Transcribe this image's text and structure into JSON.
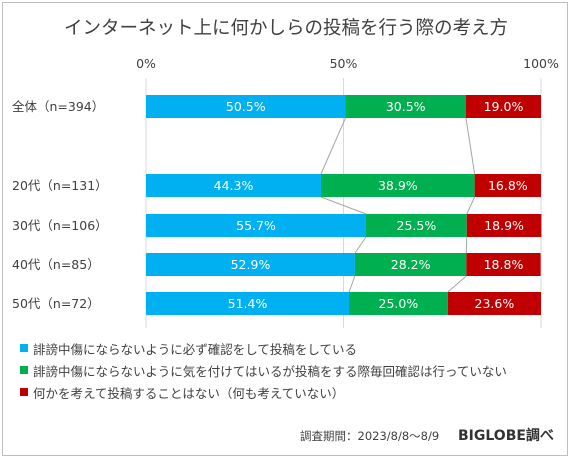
{
  "title": "インターネット上に何かしらの投稿を行う際の考え方",
  "chart_data": {
    "type": "stacked-bar-horizontal-100",
    "xlim": [
      0,
      100
    ],
    "x_ticks": [
      "0%",
      "50%",
      "100%"
    ],
    "categories": [
      "全体（n=394）",
      "20代（n=131）",
      "30代（n=106）",
      "40代（n=85）",
      "50代（n=72）"
    ],
    "series": [
      {
        "name": "誹謗中傷にならないように必ず確認をして投稿をしている",
        "color": "#00b0f0",
        "values": [
          50.5,
          44.3,
          55.7,
          52.9,
          51.4
        ],
        "labels": [
          "50.5%",
          "44.3%",
          "55.7%",
          "52.9%",
          "51.4%"
        ]
      },
      {
        "name": "誹謗中傷にならないように気を付けてはいるが投稿をする際毎回確認は行っていない",
        "color": "#00b050",
        "values": [
          30.5,
          38.9,
          25.5,
          28.2,
          25.0
        ],
        "labels": [
          "30.5%",
          "38.9%",
          "25.5%",
          "28.2%",
          "25.0%"
        ]
      },
      {
        "name": "何かを考えて投稿することはない（何も考えていない）",
        "color": "#c00000",
        "values": [
          19.0,
          16.8,
          18.9,
          18.8,
          23.6
        ],
        "labels": [
          "19.0%",
          "16.8%",
          "18.9%",
          "18.8%",
          "23.6%"
        ]
      }
    ],
    "grid": true,
    "legend_position": "bottom"
  },
  "footer": {
    "period": "調査期間：2023/8/8～8/9",
    "credit": "BIGLOBE調べ"
  }
}
